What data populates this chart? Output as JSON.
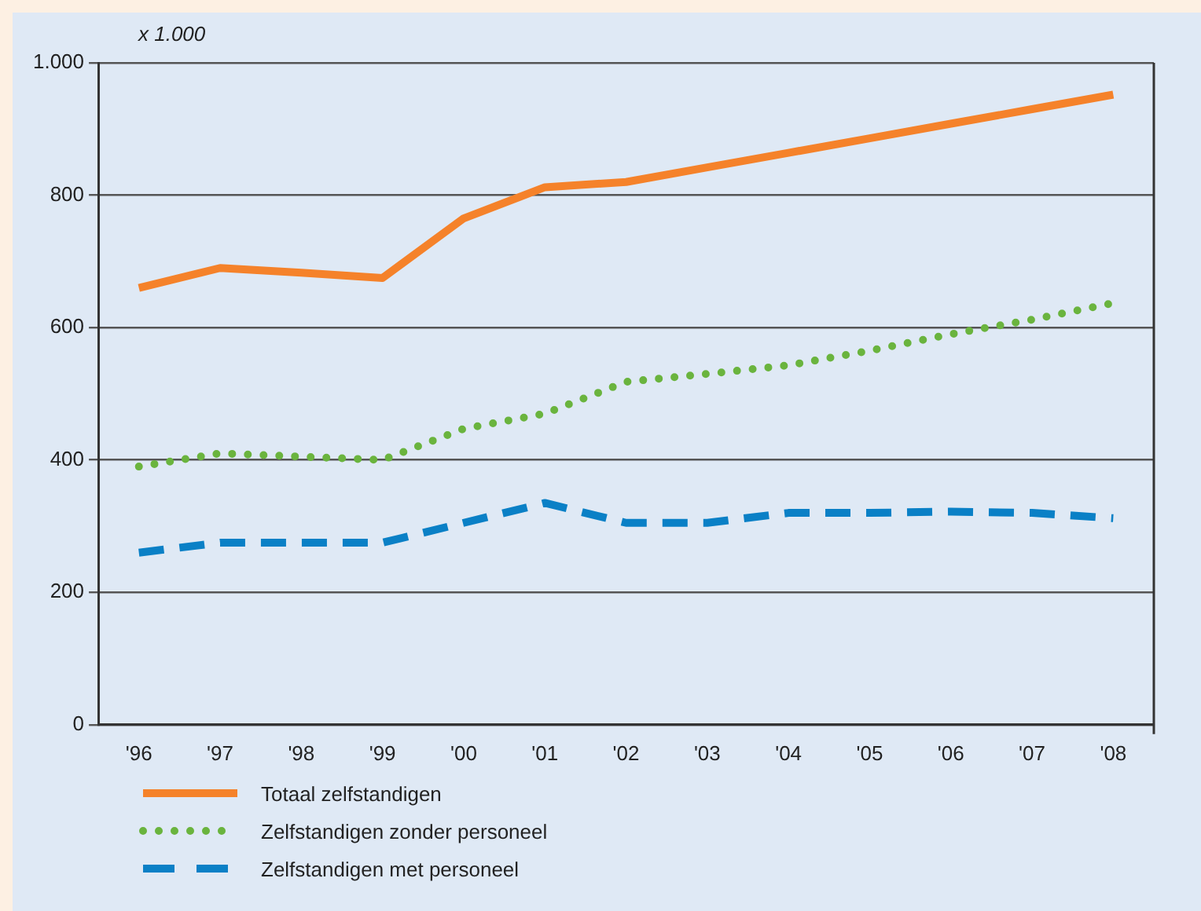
{
  "chart_data": {
    "type": "line",
    "ylabel": "x 1.000",
    "categories": [
      "'96",
      "'97",
      "'98",
      "'99",
      "'00",
      "'01",
      "'02",
      "'03",
      "'04",
      "'05",
      "'06",
      "'07",
      "'08"
    ],
    "series": [
      {
        "name": "Totaal zelfstandigen",
        "color": "#f5822a",
        "line_style": "solid",
        "values": [
          660,
          690,
          683,
          675,
          765,
          812,
          820,
          842,
          864,
          886,
          908,
          930,
          952
        ]
      },
      {
        "name": "Zelfstandigen zonder personeel",
        "color": "#6ab43e",
        "line_style": "dotted",
        "values": [
          390,
          410,
          405,
          400,
          447,
          470,
          518,
          530,
          543,
          565,
          590,
          612,
          637
        ]
      },
      {
        "name": "Zelfstandigen met personeel",
        "color": "#0a80c6",
        "line_style": "dashed",
        "values": [
          260,
          275,
          275,
          275,
          305,
          335,
          305,
          305,
          320,
          320,
          322,
          320,
          312
        ]
      }
    ],
    "ylim": [
      0,
      1000
    ],
    "yticks": [
      0,
      200,
      400,
      600,
      800,
      {
        "value": 1000,
        "label": "1.000"
      }
    ],
    "grid": "y",
    "legend": "bottom left",
    "marker": "none"
  }
}
